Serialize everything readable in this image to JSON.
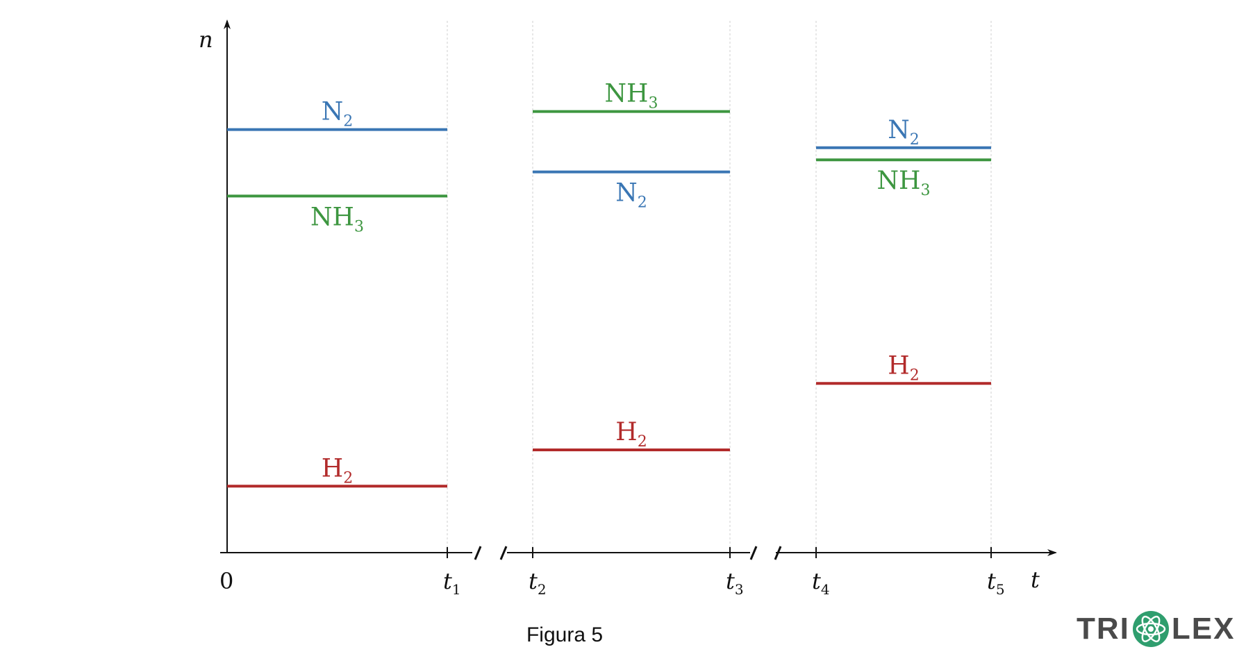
{
  "chart_data": {
    "type": "line",
    "ylabel": "n",
    "xlabel": "t",
    "origin_label": "0",
    "colors": {
      "N2": "#3a76b4",
      "NH3": "#3d9640",
      "H2": "#b22b2b"
    },
    "ticks": [
      {
        "base": "t",
        "sub": "1"
      },
      {
        "base": "t",
        "sub": "2"
      },
      {
        "base": "t",
        "sub": "3"
      },
      {
        "base": "t",
        "sub": "4"
      },
      {
        "base": "t",
        "sub": "5"
      }
    ],
    "segments": [
      {
        "interval": [
          "0",
          "t1"
        ],
        "series": [
          {
            "species": "N2",
            "label_base": "N",
            "label_sub": "2",
            "value": 7.0
          },
          {
            "species": "NH3",
            "label_base": "NH",
            "label_sub": "3",
            "value": 5.9
          },
          {
            "species": "H2",
            "label_base": "H",
            "label_sub": "2",
            "value": 1.1
          }
        ]
      },
      {
        "interval": [
          "t2",
          "t3"
        ],
        "series": [
          {
            "species": "NH3",
            "label_base": "NH",
            "label_sub": "3",
            "value": 7.3
          },
          {
            "species": "N2",
            "label_base": "N",
            "label_sub": "2",
            "value": 6.3
          },
          {
            "species": "H2",
            "label_base": "H",
            "label_sub": "2",
            "value": 1.7
          }
        ]
      },
      {
        "interval": [
          "t4",
          "t5"
        ],
        "series": [
          {
            "species": "N2",
            "label_base": "N",
            "label_sub": "2",
            "value": 6.7
          },
          {
            "species": "NH3",
            "label_base": "NH",
            "label_sub": "3",
            "value": 6.5
          },
          {
            "species": "H2",
            "label_base": "H",
            "label_sub": "2",
            "value": 2.8
          }
        ]
      }
    ],
    "ylim": [
      0,
      8.8
    ]
  },
  "caption": "Figura 5",
  "logo": {
    "part1": "TRI",
    "part2": "LEX",
    "icon": "atom-icon"
  }
}
